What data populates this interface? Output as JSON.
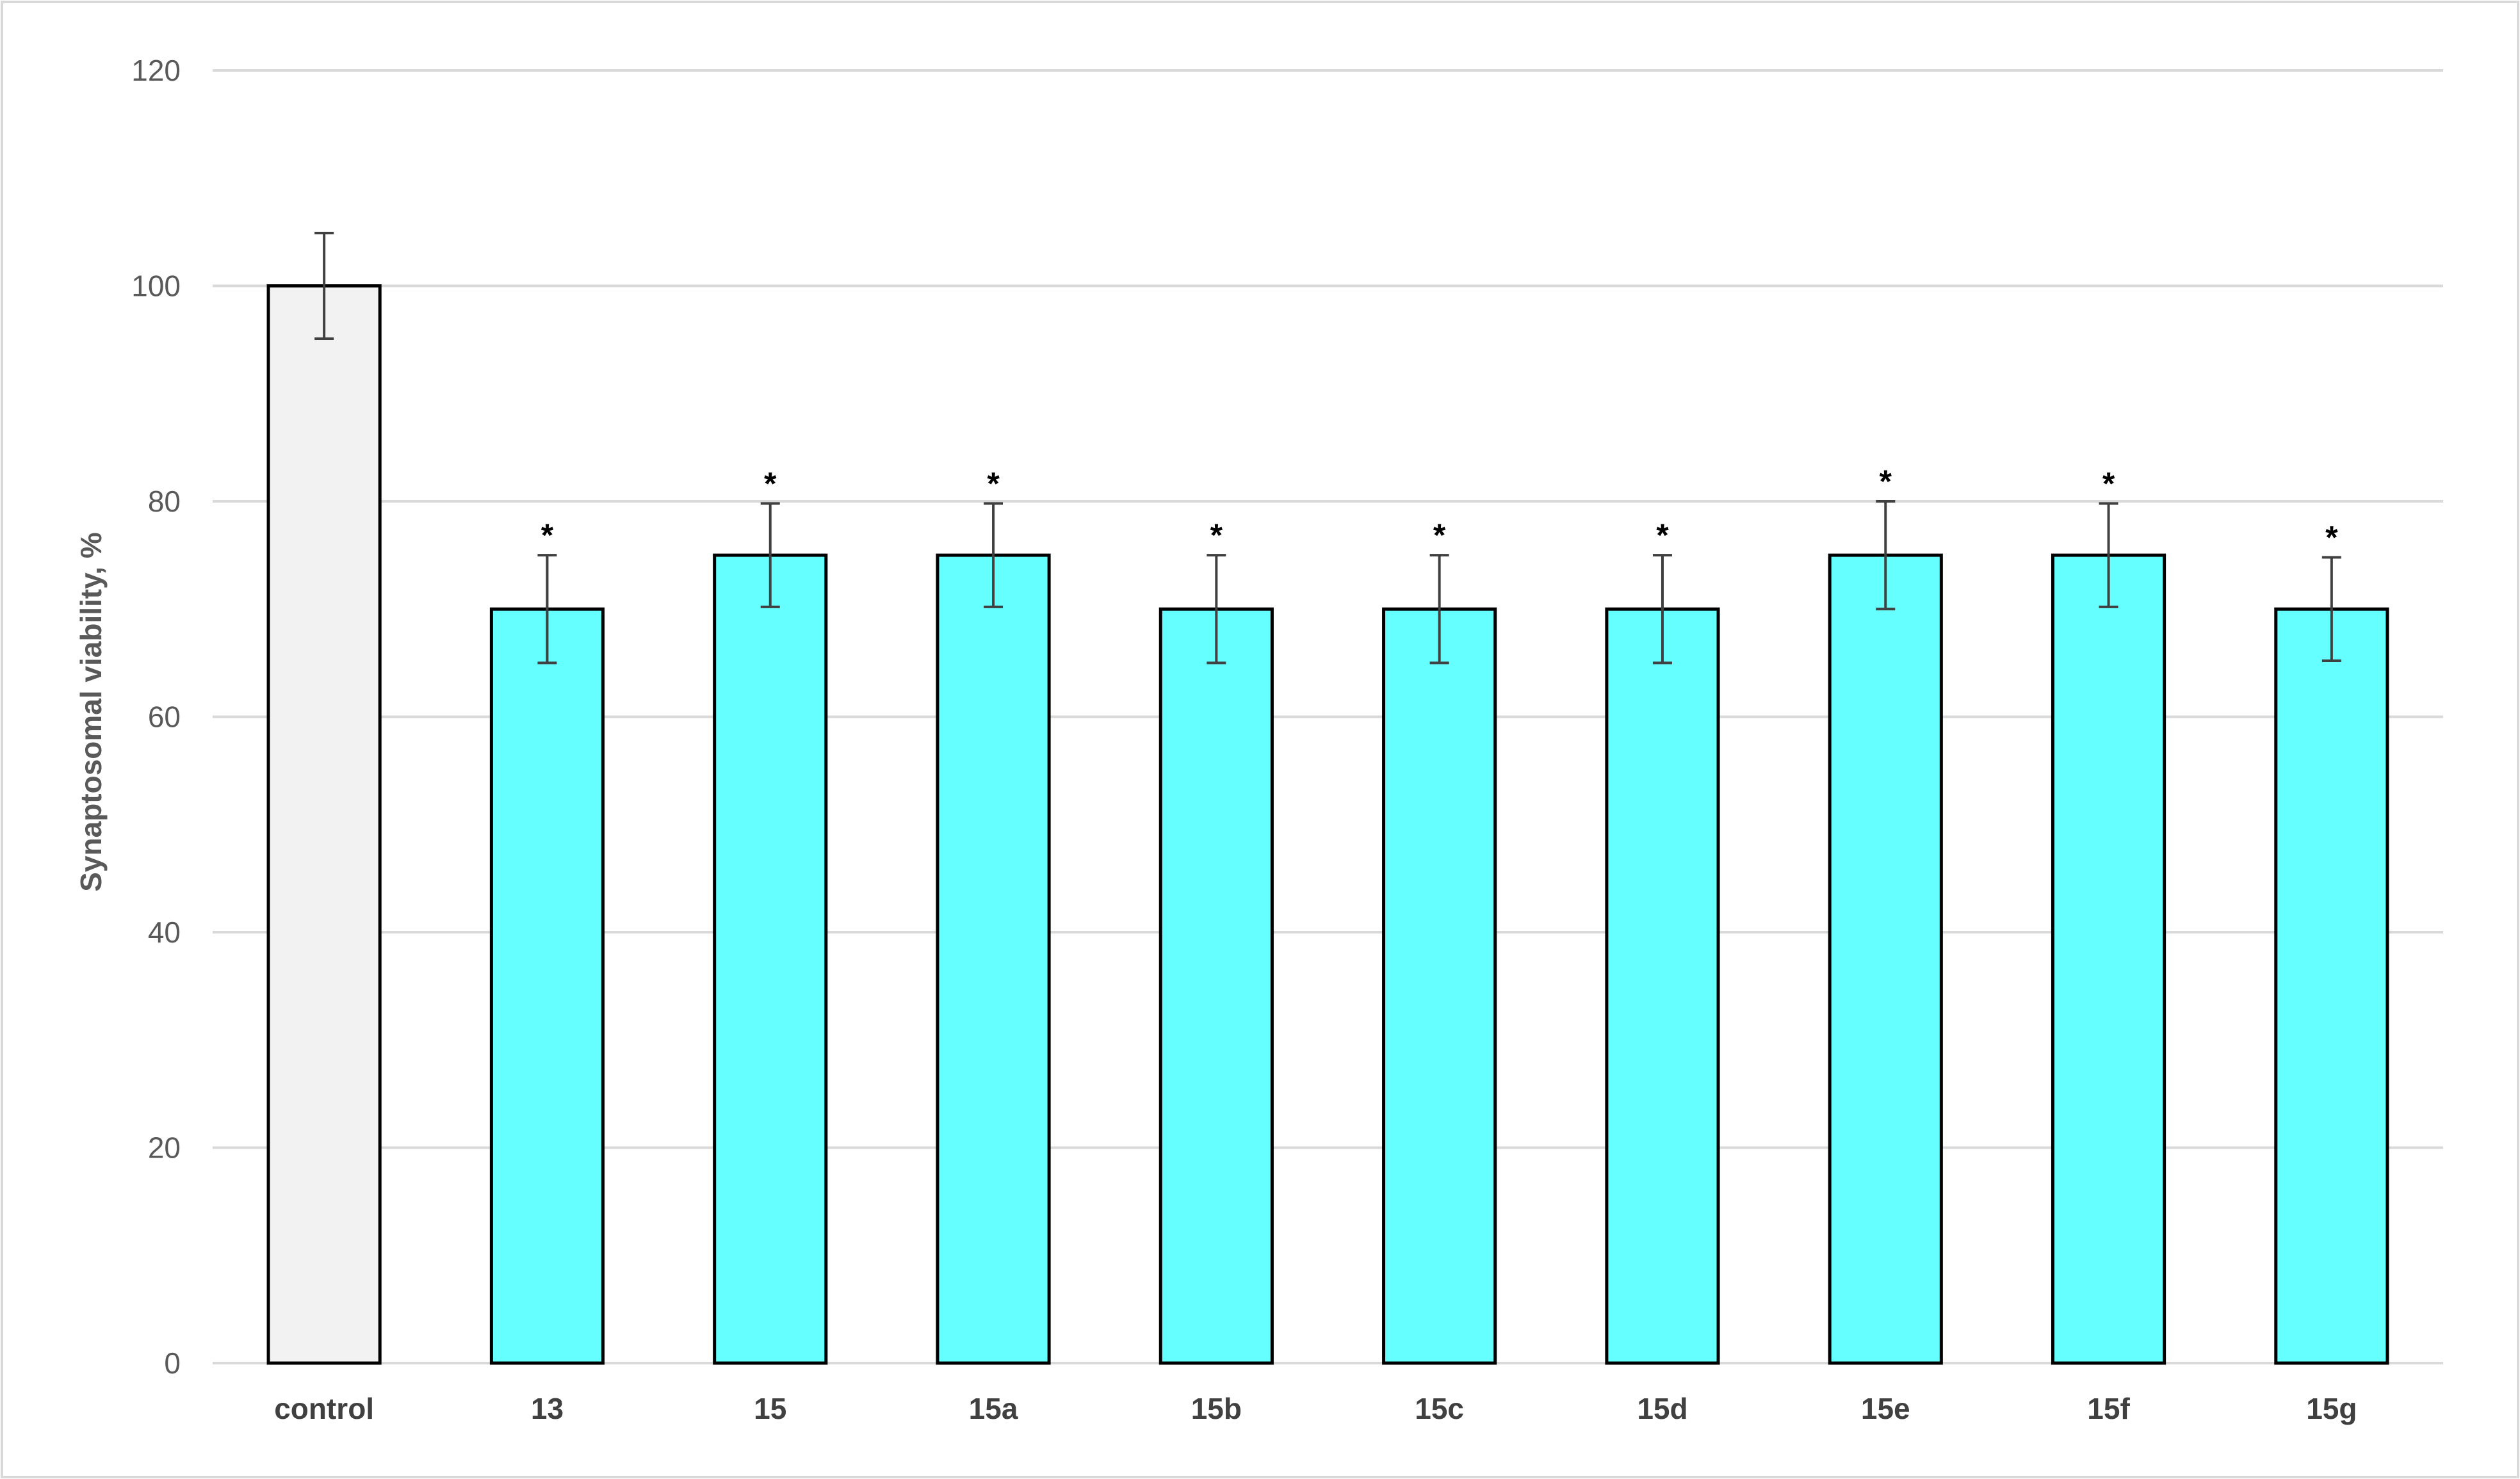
{
  "chart_data": {
    "type": "bar",
    "title": "",
    "xlabel": "",
    "ylabel": "Synaptosomal viability, %",
    "ylim": [
      0,
      120
    ],
    "yticks": [
      0,
      20,
      40,
      60,
      80,
      100,
      120
    ],
    "grid": true,
    "legend": "none",
    "categories": [
      "control",
      "13",
      "15",
      "15a",
      "15b",
      "15c",
      "15d",
      "15e",
      "15f",
      "15g"
    ],
    "values": [
      100,
      70,
      75,
      75,
      70,
      70,
      70,
      75,
      75,
      70
    ],
    "error": [
      4.9,
      5,
      4.8,
      4.8,
      5,
      5,
      5,
      5,
      4.8,
      4.8
    ],
    "significance": [
      "",
      "*",
      "*",
      "*",
      "*",
      "*",
      "*",
      "*",
      "*",
      "*"
    ],
    "colors": [
      "#f2f2f2",
      "#66ffff",
      "#66ffff",
      "#66ffff",
      "#66ffff",
      "#66ffff",
      "#66ffff",
      "#66ffff",
      "#66ffff",
      "#66ffff"
    ],
    "bar_edge_color": "#000000",
    "error_bar_color": "#404040",
    "grid_color": "#d9d9d9"
  }
}
